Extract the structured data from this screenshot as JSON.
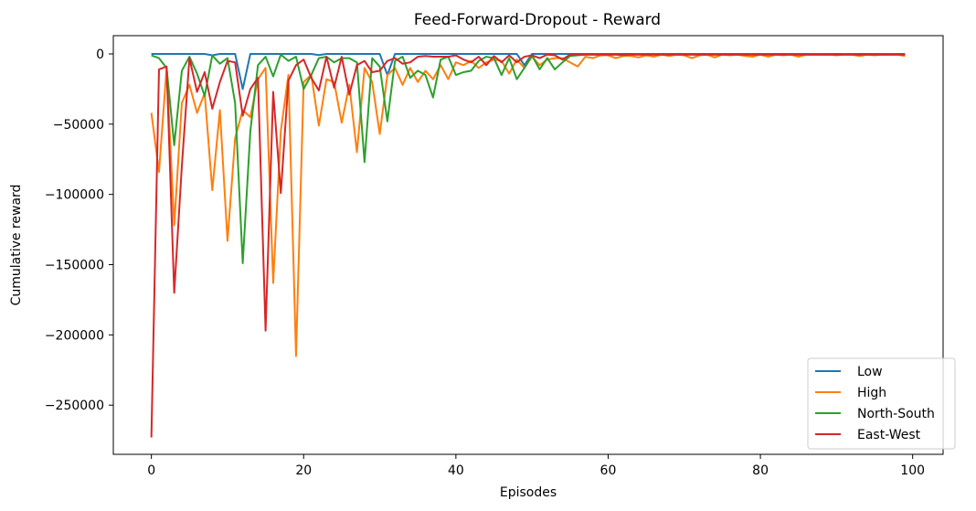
{
  "chart_data": {
    "type": "line",
    "title": "Feed-Forward-Dropout - Reward",
    "xlabel": "Episodes",
    "ylabel": "Cumulative reward",
    "xlim": [
      -5,
      104
    ],
    "ylim": [
      -285000,
      13000
    ],
    "xticks": [
      0,
      20,
      40,
      60,
      80,
      100
    ],
    "yticks": [
      0,
      -50000,
      -100000,
      -150000,
      -200000,
      -250000
    ],
    "ytick_labels": [
      "0",
      "−50000",
      "−100000",
      "−150000",
      "−200000",
      "−250000"
    ],
    "grid": false,
    "legend": "lower-right",
    "series": [
      {
        "name": "Low",
        "color": "#1f77b4",
        "values": [
          0,
          0,
          0,
          0,
          0,
          0,
          0,
          0,
          -1000,
          0,
          0,
          0,
          -25000,
          0,
          0,
          0,
          0,
          0,
          0,
          0,
          0,
          0,
          -800,
          0,
          0,
          0,
          0,
          0,
          0,
          0,
          0,
          -15000,
          0,
          0,
          0,
          0,
          0,
          0,
          0,
          0,
          0,
          0,
          0,
          0,
          0,
          0,
          0,
          0,
          0,
          -8000,
          0,
          0,
          0,
          0,
          0,
          0,
          0,
          0,
          0,
          0,
          0,
          0,
          0,
          0,
          0,
          0,
          0,
          0,
          0,
          0,
          0,
          0,
          0,
          0,
          0,
          0,
          0,
          0,
          0,
          0,
          0,
          0,
          0,
          0,
          0,
          0,
          0,
          0,
          0,
          0,
          0,
          0,
          0,
          0,
          0,
          0,
          0,
          0,
          0,
          0
        ]
      },
      {
        "name": "High",
        "color": "#ff7f0e",
        "values": [
          -42000,
          -84000,
          -10000,
          -122000,
          -35000,
          -22000,
          -42000,
          -28000,
          -97000,
          -40000,
          -133000,
          -60000,
          -40000,
          -45000,
          -18000,
          -10000,
          -163000,
          -55000,
          -15000,
          -215000,
          -20000,
          -15000,
          -51000,
          -18000,
          -20000,
          -49000,
          -22000,
          -70000,
          -10000,
          -20000,
          -57000,
          -15000,
          -10000,
          -22000,
          -10000,
          -20000,
          -12000,
          -18000,
          -8000,
          -18000,
          -6000,
          -8000,
          -5000,
          -10000,
          -6000,
          -4000,
          -5000,
          -14000,
          -4000,
          -10000,
          -2000,
          -8000,
          -4000,
          -3000,
          -3000,
          -6000,
          -9000,
          -2000,
          -3000,
          -1000,
          -1000,
          -3000,
          -1500,
          -1500,
          -2500,
          -1000,
          -2000,
          -500,
          -1500,
          -500,
          -1000,
          -3000,
          -1000,
          -500,
          -2500,
          -500,
          -1000,
          -500,
          -1500,
          -2000,
          -500,
          -2000,
          -500,
          -1000,
          -500,
          -2000,
          -500,
          -500,
          -500,
          -500,
          -1000,
          -500,
          -500,
          -1500,
          -500,
          -1000,
          -500,
          -500,
          -500,
          -1500
        ]
      },
      {
        "name": "North-South",
        "color": "#2ca02c",
        "values": [
          -1000,
          -3000,
          -10000,
          -65000,
          -12000,
          -2000,
          -14000,
          -30000,
          -1000,
          -7000,
          -3000,
          -35000,
          -149000,
          -55000,
          -8000,
          -2000,
          -16000,
          -500,
          -5000,
          -2000,
          -25000,
          -15000,
          -3000,
          -2000,
          -6000,
          -3000,
          -3000,
          -6000,
          -77000,
          -3000,
          -9000,
          -48000,
          -5000,
          -2000,
          -17000,
          -12000,
          -15000,
          -31000,
          -4000,
          -2000,
          -15000,
          -13000,
          -12000,
          -5000,
          -2000,
          -3000,
          -15000,
          -3000,
          -18000,
          -10000,
          -1000,
          -11000,
          -3000,
          -11000,
          -6000,
          -1500,
          -1000,
          -500,
          -500,
          -500,
          -500,
          -500,
          -1000,
          -500,
          -500,
          -500,
          -500,
          -500,
          -500,
          -500,
          -500,
          -500,
          -500,
          -500,
          -500,
          -500,
          -500,
          -500,
          -500,
          -500,
          -500,
          -500,
          -500,
          -500,
          -500,
          -500,
          -500,
          -500,
          -500,
          -500,
          -500,
          -500,
          -500,
          -500,
          -500,
          -500,
          -500,
          -500,
          -500,
          -500
        ]
      },
      {
        "name": "East-West",
        "color": "#d62728",
        "values": [
          -273000,
          -11000,
          -9000,
          -170000,
          -80000,
          -3000,
          -27000,
          -13000,
          -39000,
          -20000,
          -5000,
          -6000,
          -44000,
          -25000,
          -17000,
          -197000,
          -27000,
          -99000,
          -19000,
          -8000,
          -4000,
          -17000,
          -26000,
          -2000,
          -24000,
          -2000,
          -29000,
          -8000,
          -5000,
          -13000,
          -12000,
          -5000,
          -3000,
          -7000,
          -6000,
          -2000,
          -1500,
          -2000,
          -2000,
          -2000,
          -1000,
          -4000,
          -6000,
          -2000,
          -8000,
          -1500,
          -6000,
          -1000,
          -6000,
          -2000,
          -1000,
          -3000,
          -500,
          -1000,
          -4000,
          -500,
          -500,
          -500,
          -500,
          -500,
          -500,
          -500,
          -500,
          -500,
          -500,
          -500,
          -500,
          -500,
          -500,
          -500,
          -500,
          -500,
          -500,
          -500,
          -500,
          -500,
          -500,
          -500,
          -500,
          -500,
          -500,
          -500,
          -500,
          -500,
          -500,
          -500,
          -500,
          -500,
          -500,
          -500,
          -500,
          -500,
          -500,
          -500,
          -500,
          -500,
          -500,
          -500,
          -500,
          -500
        ]
      }
    ]
  }
}
